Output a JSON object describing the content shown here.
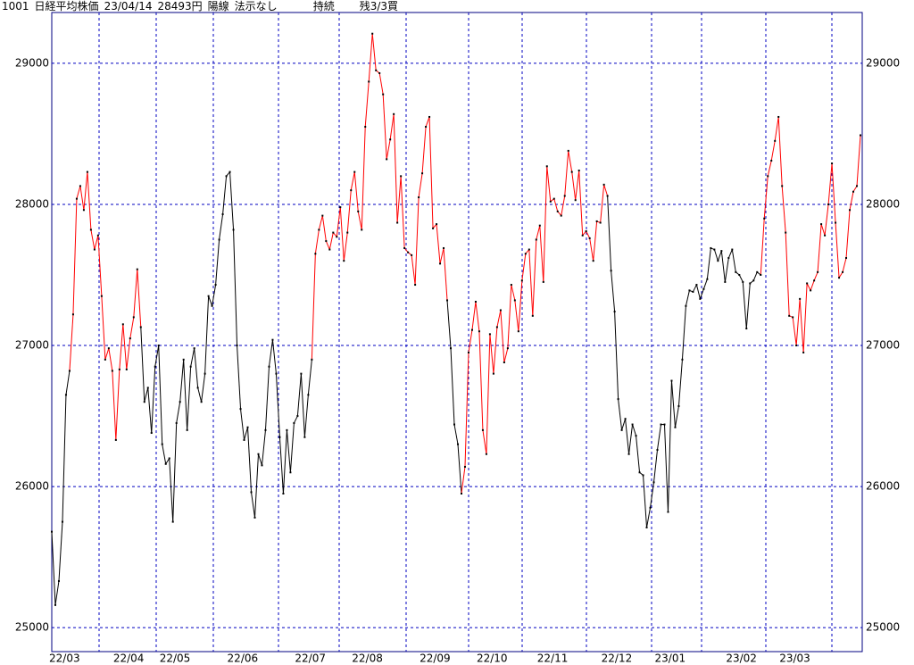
{
  "header": {
    "code": "1001",
    "name": "日経平均株価",
    "date": "23/04/14",
    "price": "28493円",
    "candle": "陽線",
    "signal": "法示なし",
    "status": "持続",
    "remaining": "残3/3買"
  },
  "chart_data": {
    "type": "line",
    "categories": [
      "22/03",
      null,
      null,
      null,
      null,
      null,
      null,
      null,
      null,
      null,
      null,
      null,
      null,
      null,
      null,
      null,
      null,
      null,
      "22/04",
      null,
      null,
      null,
      null,
      null,
      null,
      null,
      null,
      null,
      null,
      null,
      null,
      "22/05",
      null,
      null,
      null,
      null,
      null,
      null,
      null,
      null,
      null,
      null,
      null,
      null,
      null,
      null,
      null,
      null,
      null,
      null,
      "22/06",
      null,
      null,
      null,
      null,
      null,
      null,
      null,
      null,
      null,
      null,
      null,
      null,
      null,
      null,
      null,
      null,
      null,
      null,
      "22/07",
      null,
      null,
      null,
      null,
      null,
      null,
      null,
      null,
      null,
      null,
      null,
      null,
      null,
      null,
      null,
      "22/08",
      null,
      null,
      null,
      null,
      null,
      null,
      null,
      null,
      null,
      null,
      null,
      null,
      null,
      null,
      null,
      null,
      null,
      null,
      "22/09",
      null,
      null,
      null,
      null,
      null,
      null,
      null,
      null,
      null,
      null,
      null,
      null,
      null,
      null,
      null,
      "22/10",
      null,
      null,
      null,
      null,
      null,
      null,
      null,
      null,
      null,
      null,
      null,
      null,
      null,
      null,
      null,
      null,
      "22/11",
      null,
      null,
      null,
      null,
      null,
      null,
      null,
      null,
      null,
      null,
      null,
      null,
      null,
      null,
      null,
      null,
      null,
      "22/12",
      null,
      null,
      null,
      null,
      null,
      null,
      null,
      null,
      null,
      null,
      null,
      null,
      null,
      null,
      "23/01",
      null,
      null,
      null,
      null,
      null,
      null,
      null,
      null,
      null,
      null,
      null,
      null,
      null,
      null,
      null,
      null,
      null,
      null,
      null,
      "23/02",
      null,
      null,
      null,
      null,
      null,
      null,
      null,
      null,
      null,
      null,
      null,
      null,
      null,
      null,
      "23/03",
      null,
      null,
      null,
      null,
      null,
      null,
      null,
      null,
      null,
      null,
      null,
      null,
      null,
      null,
      null,
      null,
      null,
      null,
      null,
      null,
      null,
      null
    ],
    "values": [
      25680,
      25160,
      25330,
      25750,
      26650,
      26820,
      27220,
      28040,
      28130,
      27960,
      28230,
      27820,
      27680,
      27780,
      27350,
      26900,
      26980,
      26820,
      26330,
      26830,
      27150,
      26830,
      27050,
      27200,
      27540,
      27130,
      26600,
      26700,
      26380,
      26850,
      27000,
      26300,
      26160,
      26200,
      25750,
      26450,
      26600,
      26900,
      26400,
      26850,
      26980,
      26700,
      26600,
      26800,
      27350,
      27280,
      27430,
      27750,
      27930,
      28200,
      28230,
      27820,
      27000,
      26550,
      26330,
      26420,
      25960,
      25780,
      26230,
      26150,
      26400,
      26850,
      27040,
      26800,
      26350,
      25950,
      26400,
      26100,
      26450,
      26500,
      26800,
      26350,
      26650,
      26900,
      27650,
      27820,
      27920,
      27740,
      27680,
      27800,
      27770,
      27980,
      27600,
      27800,
      28100,
      28230,
      27950,
      27820,
      28550,
      28870,
      29210,
      28950,
      28930,
      28780,
      28320,
      28460,
      28640,
      27870,
      28200,
      27690,
      27660,
      27640,
      27430,
      28050,
      28220,
      28550,
      28620,
      27830,
      27860,
      27580,
      27690,
      27320,
      26980,
      26440,
      26300,
      25950,
      26140,
      26950,
      27110,
      27310,
      27100,
      26400,
      26230,
      27080,
      26800,
      27130,
      27250,
      26880,
      26980,
      27430,
      27320,
      27100,
      27460,
      27650,
      27680,
      27210,
      27750,
      27850,
      27450,
      28270,
      28020,
      28040,
      27950,
      27920,
      28060,
      28380,
      28230,
      28030,
      28240,
      27780,
      27810,
      27760,
      27600,
      27880,
      27870,
      28140,
      28060,
      27530,
      27240,
      26620,
      26400,
      26480,
      26230,
      26440,
      26360,
      26100,
      26080,
      25710,
      25850,
      26030,
      26260,
      26440,
      26440,
      25820,
      26750,
      26420,
      26570,
      26900,
      27280,
      27390,
      27380,
      27430,
      27330,
      27400,
      27470,
      27690,
      27680,
      27600,
      27670,
      27450,
      27620,
      27680,
      27520,
      27500,
      27450,
      27120,
      27440,
      27460,
      27520,
      27500,
      27900,
      28200,
      28310,
      28450,
      28620,
      28130,
      27800,
      27210,
      27200,
      27000,
      27330,
      26950,
      27440,
      27390,
      27460,
      27520,
      27860,
      27780,
      28000,
      28290,
      27870,
      27480,
      27520,
      27620,
      27960,
      28090,
      28130,
      28490
    ],
    "point_colors": [
      "black",
      "black",
      "black",
      "black",
      "black",
      "black",
      "red",
      "red",
      "red",
      "red",
      "red",
      "red",
      "red",
      "red",
      "red",
      "red",
      "red",
      "red",
      "red",
      "red",
      "red",
      "red",
      "red",
      "red",
      "red",
      "red",
      "black",
      "black",
      "black",
      "black",
      "black",
      "black",
      "black",
      "black",
      "black",
      "black",
      "black",
      "black",
      "black",
      "black",
      "black",
      "black",
      "black",
      "black",
      "black",
      "black",
      "black",
      "black",
      "black",
      "black",
      "black",
      "black",
      "black",
      "black",
      "black",
      "black",
      "black",
      "black",
      "black",
      "black",
      "black",
      "black",
      "black",
      "black",
      "black",
      "black",
      "black",
      "black",
      "black",
      "black",
      "black",
      "black",
      "black",
      "black",
      "red",
      "red",
      "red",
      "red",
      "red",
      "red",
      "red",
      "red",
      "red",
      "red",
      "red",
      "red",
      "red",
      "red",
      "red",
      "red",
      "red",
      "red",
      "red",
      "red",
      "red",
      "red",
      "red",
      "red",
      "red",
      "red",
      "red",
      "red",
      "red",
      "red",
      "red",
      "red",
      "red",
      "red",
      "red",
      "red",
      "red",
      "red",
      "black",
      "black",
      "black",
      "black",
      "red",
      "red",
      "red",
      "red",
      "red",
      "red",
      "red",
      "red",
      "red",
      "red",
      "red",
      "red",
      "red",
      "red",
      "red",
      "red",
      "red",
      "red",
      "red",
      "red",
      "red",
      "red",
      "red",
      "red",
      "red",
      "red",
      "red",
      "red",
      "red",
      "red",
      "red",
      "red",
      "red",
      "red",
      "red",
      "red",
      "red",
      "red",
      "red",
      "red",
      "red",
      "black",
      "black",
      "black",
      "black",
      "black",
      "black",
      "black",
      "black",
      "black",
      "black",
      "black",
      "black",
      "black",
      "black",
      "black",
      "black",
      "black",
      "black",
      "black",
      "black",
      "black",
      "black",
      "black",
      "black",
      "black",
      "black",
      "black",
      "black",
      "black",
      "black",
      "black",
      "black",
      "black",
      "black",
      "black",
      "black",
      "black",
      "black",
      "black",
      "black",
      "black",
      "black",
      "black",
      "red",
      "red",
      "red",
      "red",
      "red",
      "red",
      "red",
      "red",
      "red",
      "red",
      "red",
      "red",
      "red",
      "red",
      "red",
      "red",
      "red",
      "red",
      "red",
      "red",
      "red",
      "red",
      "red",
      "red",
      "red",
      "red",
      "red",
      "red"
    ],
    "ylim": [
      24830,
      29360
    ],
    "yticks": [
      25000,
      26000,
      27000,
      28000,
      29000
    ],
    "grid": true
  }
}
